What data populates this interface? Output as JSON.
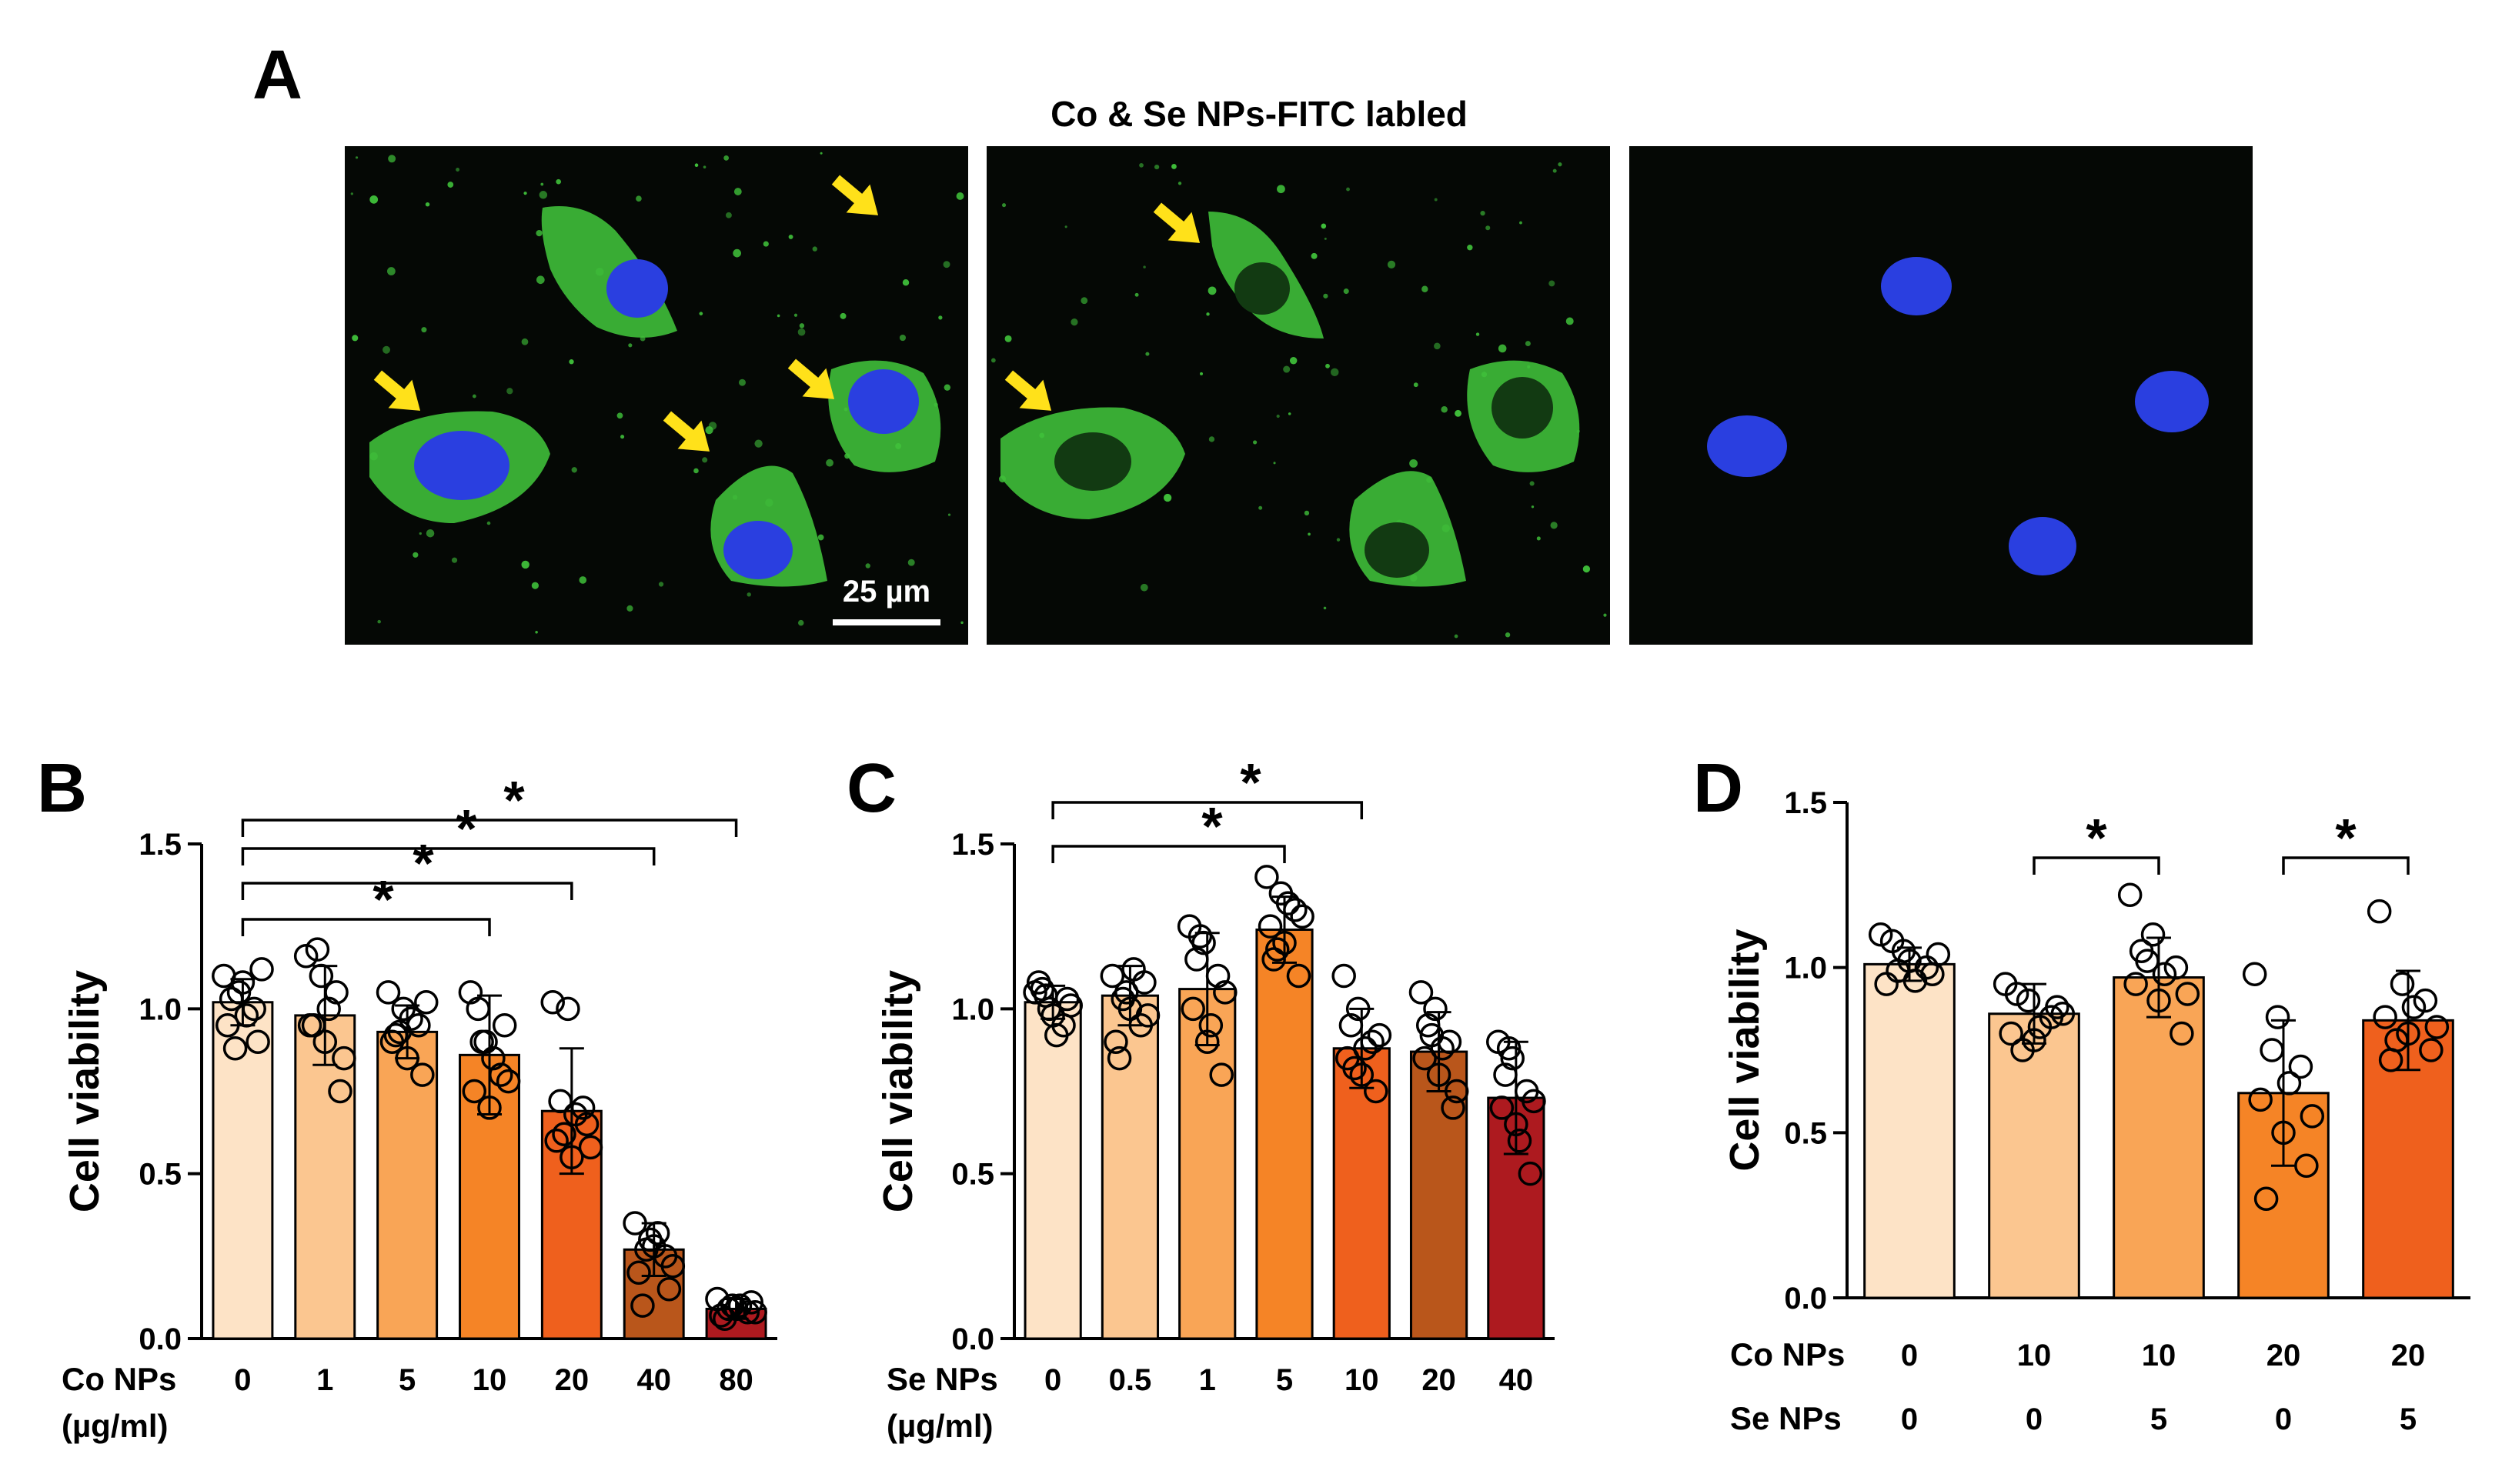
{
  "figure": {
    "panel_a_letter": "A",
    "panel_a_title": "Co & Se NPs-FITC labled",
    "scale_bar_label": "25 µm"
  },
  "colors": {
    "micro_bg": "#050805",
    "fitc_green": "#3fbf3a",
    "dapi_blue": "#2a3fe0",
    "arrow_yellow": "#ffe11a"
  },
  "chart_data": [
    {
      "panel": "B",
      "type": "bar",
      "ylabel": "Cell viability",
      "ylim": [
        0,
        1.5
      ],
      "yticks": [
        "0.0",
        "0.5",
        "1.0",
        "1.5"
      ],
      "category_rows": [
        {
          "label": "Co NPs",
          "sublabel": "(µg/ml)",
          "values": [
            "0",
            "1",
            "5",
            "10",
            "20",
            "40",
            "80"
          ]
        }
      ],
      "values": [
        1.02,
        0.98,
        0.93,
        0.86,
        0.69,
        0.27,
        0.09
      ],
      "errors": [
        0.07,
        0.15,
        0.08,
        0.18,
        0.19,
        0.08,
        0.03
      ],
      "colors": [
        "#fde3c6",
        "#fbc690",
        "#f9a556",
        "#f58426",
        "#ef601d",
        "#b9561b",
        "#ad1a1f"
      ],
      "points": [
        [
          1.1,
          1.05,
          1.0,
          0.95,
          1.08,
          0.9,
          1.03,
          0.98,
          1.12,
          0.88
        ],
        [
          1.16,
          1.1,
          1.05,
          0.95,
          0.9,
          0.75,
          0.95,
          1.0,
          0.85,
          1.18
        ],
        [
          1.05,
          1.0,
          0.95,
          0.9,
          0.85,
          0.8,
          0.92,
          0.97,
          1.02,
          0.93
        ],
        [
          1.05,
          0.9,
          0.8,
          0.75,
          0.7,
          0.95,
          1.0,
          0.85,
          0.78,
          0.9
        ],
        [
          1.02,
          1.0,
          0.7,
          0.6,
          0.55,
          0.65,
          0.72,
          0.68,
          0.58,
          0.62
        ],
        [
          0.35,
          0.3,
          0.25,
          0.2,
          0.28,
          0.15,
          0.1,
          0.32,
          0.22,
          0.27
        ],
        [
          0.12,
          0.1,
          0.08,
          0.07,
          0.09,
          0.11,
          0.06,
          0.1,
          0.08,
          0.09
        ]
      ],
      "significance": [
        {
          "from": 0,
          "to": 3,
          "label": "*"
        },
        {
          "from": 0,
          "to": 4,
          "label": "*"
        },
        {
          "from": 0,
          "to": 5,
          "label": "*"
        },
        {
          "from": 0,
          "to": 6,
          "label": "*"
        }
      ]
    },
    {
      "panel": "C",
      "type": "bar",
      "ylabel": "Cell viability",
      "ylim": [
        0,
        1.5
      ],
      "yticks": [
        "0.0",
        "0.5",
        "1.0",
        "1.5"
      ],
      "category_rows": [
        {
          "label": "Se NPs",
          "sublabel": "(µg/ml)",
          "values": [
            "0",
            "0.5",
            "1",
            "5",
            "10",
            "20",
            "40"
          ]
        }
      ],
      "values": [
        1.02,
        1.04,
        1.06,
        1.24,
        0.88,
        0.87,
        0.73
      ],
      "errors": [
        0.05,
        0.09,
        0.17,
        0.1,
        0.12,
        0.12,
        0.17
      ],
      "colors": [
        "#fde3c6",
        "#fbc690",
        "#f9a556",
        "#f58426",
        "#ef601d",
        "#b9561b",
        "#ad1a1f"
      ],
      "points": [
        [
          1.05,
          1.0,
          0.95,
          1.08,
          0.98,
          1.03,
          1.06,
          0.92,
          1.01,
          1.04
        ],
        [
          1.1,
          1.05,
          0.95,
          0.9,
          1.0,
          1.08,
          0.85,
          1.12,
          0.98,
          1.03
        ],
        [
          1.25,
          1.2,
          1.1,
          1.0,
          0.9,
          0.8,
          1.15,
          0.95,
          1.05,
          1.22
        ],
        [
          1.4,
          1.35,
          1.3,
          1.25,
          1.2,
          1.1,
          1.15,
          1.32,
          1.28,
          1.18
        ],
        [
          1.1,
          1.0,
          0.9,
          0.85,
          0.8,
          0.75,
          0.95,
          0.88,
          0.92,
          0.82
        ],
        [
          1.05,
          1.0,
          0.9,
          0.85,
          0.8,
          0.7,
          0.95,
          0.88,
          0.75,
          0.92
        ],
        [
          0.9,
          0.85,
          0.75,
          0.7,
          0.65,
          0.5,
          0.8,
          0.6,
          0.72,
          0.88
        ]
      ],
      "significance": [
        {
          "from": 0,
          "to": 3,
          "label": "*"
        },
        {
          "from": 0,
          "to": 4,
          "label": "*"
        }
      ]
    },
    {
      "panel": "D",
      "type": "bar",
      "ylabel": "Cell viability",
      "ylim": [
        0,
        1.5
      ],
      "yticks": [
        "0.0",
        "0.5",
        "1.0",
        "1.5"
      ],
      "category_rows": [
        {
          "label": "Co NPs",
          "sublabel": "",
          "values": [
            "0",
            "10",
            "10",
            "20",
            "20"
          ]
        },
        {
          "label": "Se NPs",
          "sublabel": "",
          "values": [
            "0",
            "0",
            "5",
            "0",
            "5"
          ]
        }
      ],
      "values": [
        1.01,
        0.86,
        0.97,
        0.62,
        0.84
      ],
      "errors": [
        0.05,
        0.09,
        0.12,
        0.22,
        0.15
      ],
      "colors": [
        "#fde3c6",
        "#fbc690",
        "#f9a556",
        "#f58426",
        "#ef601d"
      ],
      "points": [
        [
          1.1,
          1.05,
          1.0,
          0.95,
          1.02,
          0.98,
          1.08,
          0.96,
          1.04,
          0.99
        ],
        [
          0.95,
          0.9,
          0.85,
          0.8,
          0.78,
          0.88,
          0.92,
          0.82,
          0.86,
          0.75
        ],
        [
          1.22,
          1.1,
          1.0,
          0.95,
          0.9,
          0.8,
          1.05,
          0.98,
          0.92,
          1.02
        ],
        [
          0.98,
          0.85,
          0.7,
          0.6,
          0.5,
          0.4,
          0.3,
          0.65,
          0.55,
          0.75
        ],
        [
          1.17,
          0.95,
          0.9,
          0.85,
          0.8,
          0.75,
          0.72,
          0.88,
          0.82,
          0.78
        ]
      ],
      "significance": [
        {
          "from": 1,
          "to": 2,
          "label": "*"
        },
        {
          "from": 3,
          "to": 4,
          "label": "*"
        }
      ]
    }
  ]
}
